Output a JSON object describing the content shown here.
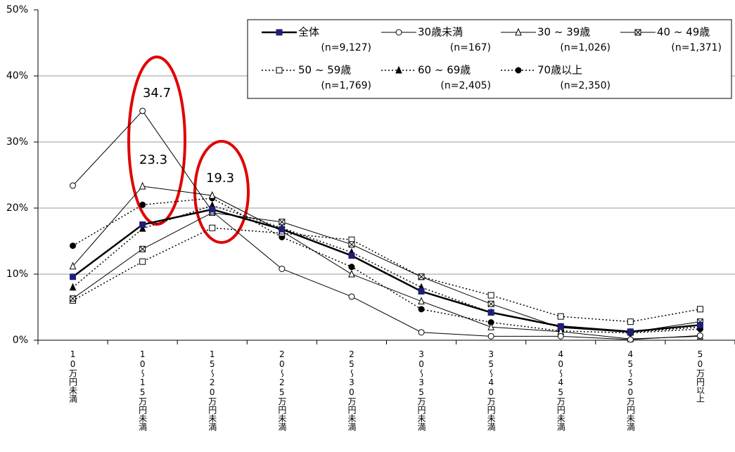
{
  "chart_data": {
    "type": "line",
    "categories": [
      "10万円未満",
      "10～15万円未満",
      "15～20万円未満",
      "20～25万円未満",
      "25～30万円未満",
      "30～35万円未満",
      "35～40万円未満",
      "40～45万円未満",
      "45～50万円未満",
      "50万円以上"
    ],
    "ylim": [
      0,
      50
    ],
    "yticks": [
      {
        "value": 0,
        "label": "0%"
      },
      {
        "value": 10,
        "label": "10%"
      },
      {
        "value": 20,
        "label": "20%"
      },
      {
        "value": 30,
        "label": "30%"
      },
      {
        "value": 40,
        "label": "40%"
      },
      {
        "value": 50,
        "label": "50%"
      }
    ],
    "grid": true,
    "legend": "top-right",
    "series": [
      {
        "name": "全体",
        "sample": "(n=9,127)",
        "color": "#000000",
        "marker_color": "#1f1f7a",
        "marker": "square-filled",
        "dash": "solid",
        "width": 2.5,
        "values": [
          9.6,
          17.5,
          19.8,
          16.8,
          12.8,
          7.4,
          4.2,
          2.1,
          1.3,
          2.3
        ]
      },
      {
        "name": "30歳未満",
        "sample": "(n=167)",
        "color": "#000000",
        "marker_color": "#000000",
        "marker": "circle-open",
        "dash": "solid",
        "width": 1,
        "values": [
          23.4,
          34.7,
          19.5,
          10.8,
          6.6,
          1.2,
          0.6,
          0.6,
          0.1,
          0.7
        ]
      },
      {
        "name": "30 ~ 39歳",
        "sample": "(n=1,026)",
        "color": "#000000",
        "marker_color": "#000000",
        "marker": "triangle-open",
        "dash": "solid",
        "width": 1,
        "values": [
          11.2,
          23.3,
          21.9,
          16.5,
          10.0,
          5.9,
          2.0,
          1.3,
          0.2,
          0.6
        ]
      },
      {
        "name": "40 ~ 49歳",
        "sample": "(n=1,371)",
        "color": "#000000",
        "marker_color": "#000000",
        "marker": "square-x",
        "dash": "solid",
        "width": 1,
        "values": [
          6.3,
          13.8,
          19.3,
          17.9,
          14.5,
          9.6,
          5.5,
          1.9,
          1.2,
          2.8
        ]
      },
      {
        "name": "50 ~ 59歳",
        "sample": "(n=1,769)",
        "color": "#000000",
        "marker_color": "#000000",
        "marker": "square-open",
        "dash": "dotted",
        "width": 1.5,
        "values": [
          6.0,
          11.9,
          17.0,
          16.2,
          15.2,
          9.6,
          6.8,
          3.6,
          2.8,
          4.7
        ]
      },
      {
        "name": "60 ~ 69歳",
        "sample": "(n=2,405)",
        "color": "#000000",
        "marker_color": "#000000",
        "marker": "triangle-filled",
        "dash": "dotted",
        "width": 1.5,
        "values": [
          8.0,
          16.9,
          20.4,
          17.0,
          13.3,
          8.0,
          4.2,
          2.0,
          1.2,
          2.0
        ]
      },
      {
        "name": "70歳以上",
        "sample": "(n=2,350)",
        "color": "#000000",
        "marker_color": "#000000",
        "marker": "circle-filled",
        "dash": "dotted",
        "width": 1.5,
        "values": [
          14.3,
          20.5,
          21.5,
          15.6,
          11.1,
          4.7,
          2.7,
          1.4,
          1.1,
          1.7
        ]
      }
    ],
    "annotations": [
      "34.7",
      "23.3",
      "19.3"
    ]
  }
}
